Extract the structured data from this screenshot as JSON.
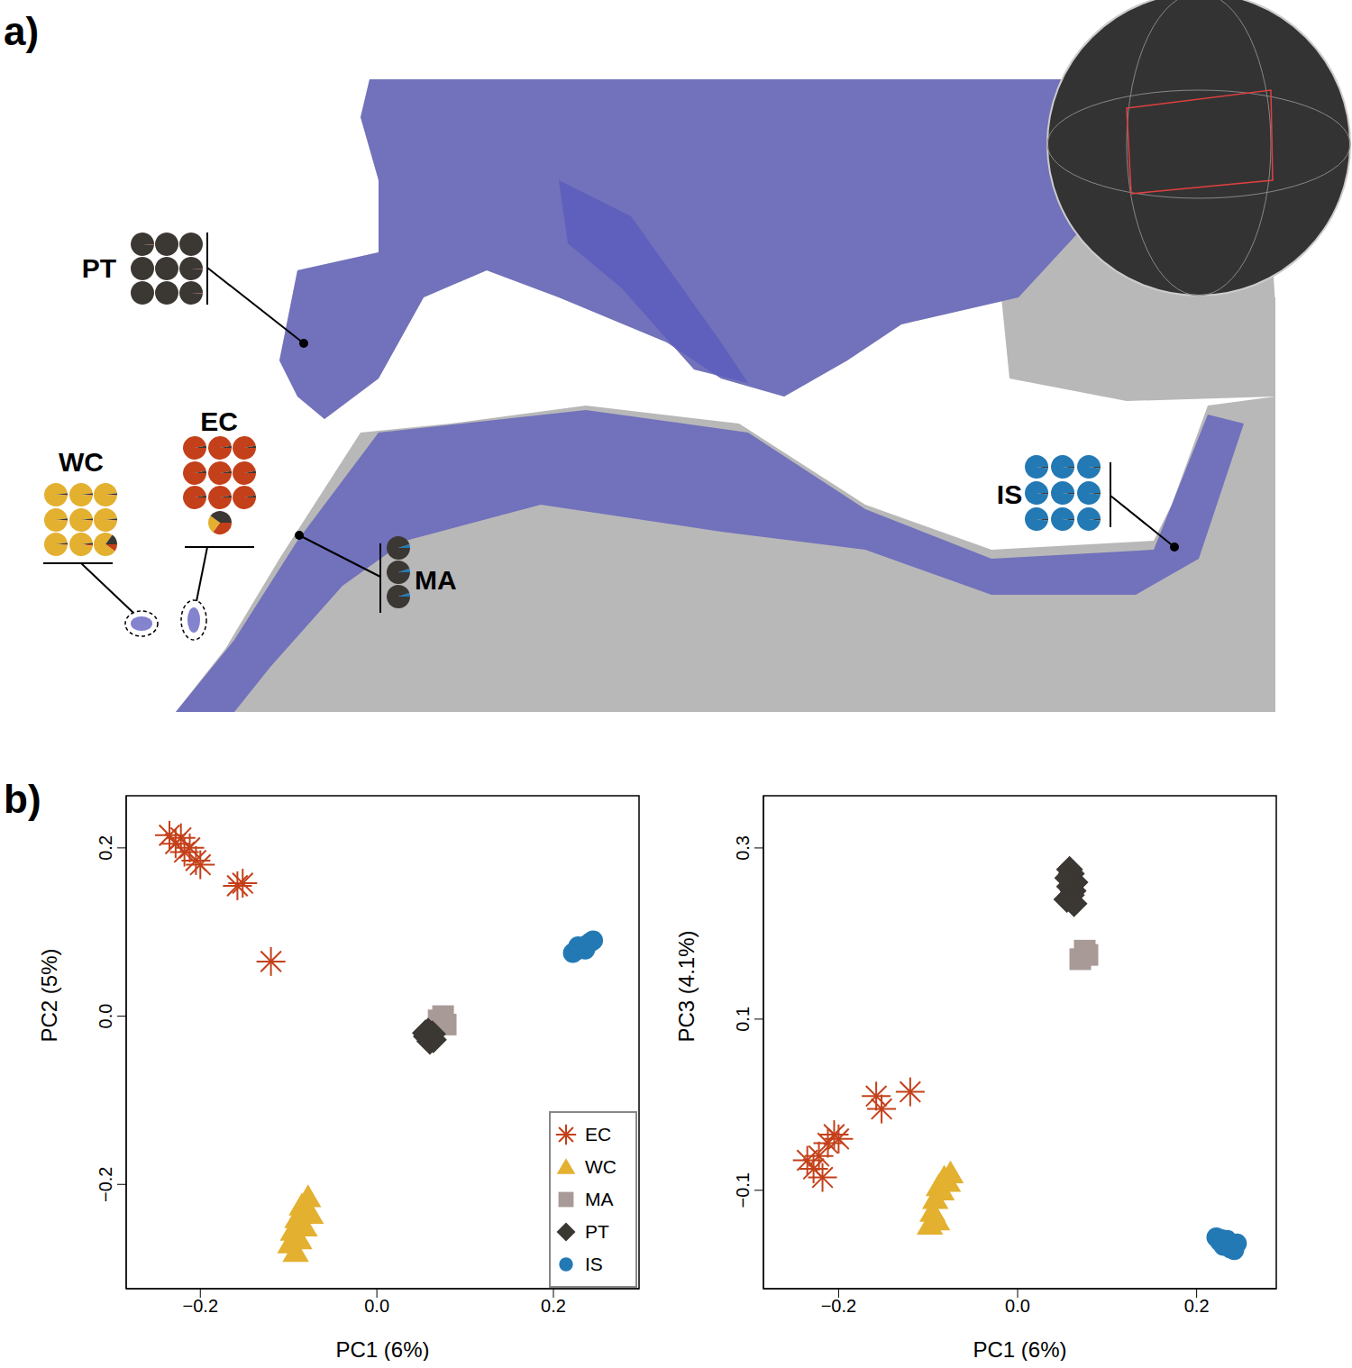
{
  "figure_labels": [
    "a)",
    "b)"
  ],
  "map": {
    "cluster_colors": [
      "#c4401a",
      "#e3b02f",
      "#3b3733",
      "#2379b4"
    ],
    "populations": [
      {
        "name": "PT",
        "individuals": [
          [
            0.01,
            0,
            0.99,
            0
          ],
          [
            0,
            0,
            1,
            0
          ],
          [
            0,
            0,
            1,
            0
          ],
          [
            0,
            0,
            1,
            0
          ],
          [
            0,
            0,
            1,
            0
          ],
          [
            0.01,
            0,
            0.99,
            0
          ],
          [
            0,
            0,
            1,
            0
          ],
          [
            0,
            0,
            1,
            0
          ],
          [
            0.01,
            0,
            0.99,
            0
          ]
        ]
      },
      {
        "name": "EC",
        "individuals": [
          [
            0.97,
            0,
            0.03,
            0
          ],
          [
            0.97,
            0,
            0.03,
            0
          ],
          [
            0.97,
            0,
            0.03,
            0
          ],
          [
            0.97,
            0,
            0.03,
            0
          ],
          [
            0.97,
            0,
            0.03,
            0
          ],
          [
            0.97,
            0,
            0.03,
            0
          ],
          [
            0.97,
            0,
            0.03,
            0
          ],
          [
            0.97,
            0,
            0.03,
            0
          ],
          [
            0.97,
            0,
            0.03,
            0
          ],
          [
            0.35,
            0.25,
            0.4,
            0
          ]
        ]
      },
      {
        "name": "WC",
        "individuals": [
          [
            0.01,
            0.97,
            0.02,
            0
          ],
          [
            0.01,
            0.97,
            0.02,
            0
          ],
          [
            0.01,
            0.97,
            0.02,
            0
          ],
          [
            0.01,
            0.97,
            0.02,
            0
          ],
          [
            0.01,
            0.97,
            0.02,
            0
          ],
          [
            0.01,
            0.97,
            0.02,
            0
          ],
          [
            0.01,
            0.97,
            0.02,
            0
          ],
          [
            0.02,
            0.96,
            0.02,
            0
          ],
          [
            0.1,
            0.75,
            0.15,
            0
          ]
        ]
      },
      {
        "name": "MA",
        "individuals": [
          [
            0,
            0,
            0.95,
            0.05
          ],
          [
            0,
            0,
            0.95,
            0.05
          ],
          [
            0,
            0,
            0.95,
            0.05
          ]
        ]
      },
      {
        "name": "IS",
        "individuals": [
          [
            0,
            0,
            0.02,
            0.98
          ],
          [
            0,
            0,
            0.02,
            0.98
          ],
          [
            0,
            0,
            0.02,
            0.98
          ],
          [
            0,
            0,
            0.02,
            0.98
          ],
          [
            0,
            0,
            0.02,
            0.98
          ],
          [
            0,
            0,
            0.02,
            0.98
          ],
          [
            0,
            0,
            0.02,
            0.98
          ],
          [
            0,
            0,
            0.02,
            0.98
          ],
          [
            0,
            0,
            0.02,
            0.98
          ]
        ]
      }
    ]
  },
  "chart_data": [
    {
      "type": "scatter",
      "x_label": "PC1 (6%)",
      "y_label": "PC2 (5%)",
      "xlim": [
        -0.284,
        0.297
      ],
      "ylim": [
        -0.324,
        0.262
      ],
      "xticks": [
        {
          "value": -0.2,
          "label": "−0.2"
        },
        {
          "value": 0,
          "label": "0.0"
        },
        0.2
      ],
      "yticks": [
        {
          "value": -0.2,
          "label": "−0.2"
        },
        {
          "value": 0,
          "label": "0.0"
        },
        0.2
      ],
      "legend": "lower right",
      "series": [
        {
          "name": "EC",
          "color": "#c4401a",
          "marker": "asterisk",
          "x": [
            -0.235,
            -0.228,
            -0.222,
            -0.218,
            -0.212,
            -0.205,
            -0.2,
            -0.158,
            -0.152,
            -0.12
          ],
          "y": [
            0.215,
            0.205,
            0.212,
            0.195,
            0.2,
            0.185,
            0.18,
            0.155,
            0.158,
            0.065
          ]
        },
        {
          "name": "WC",
          "color": "#e3b02f",
          "marker": "triangle",
          "x": [
            -0.098,
            -0.095,
            -0.092,
            -0.09,
            -0.088,
            -0.085,
            -0.082,
            -0.078,
            -0.075
          ],
          "y": [
            -0.27,
            -0.255,
            -0.28,
            -0.24,
            -0.265,
            -0.225,
            -0.25,
            -0.215,
            -0.235
          ]
        },
        {
          "name": "MA",
          "color": "#a89a96",
          "marker": "square",
          "x": [
            0.07,
            0.075,
            0.078
          ],
          "y": [
            -0.005,
            0.0,
            -0.01
          ]
        },
        {
          "name": "PT",
          "color": "#3b3733",
          "marker": "diamond",
          "x": [
            0.055,
            0.058,
            0.06,
            0.062,
            0.064,
            0.058,
            0.06,
            0.056,
            0.063
          ],
          "y": [
            -0.02,
            -0.025,
            -0.03,
            -0.022,
            -0.028,
            -0.018,
            -0.026,
            -0.024,
            -0.021
          ]
        },
        {
          "name": "IS",
          "color": "#2379b4",
          "marker": "circle",
          "x": [
            0.222,
            0.226,
            0.23,
            0.234,
            0.238,
            0.242,
            0.245,
            0.228,
            0.236
          ],
          "y": [
            0.075,
            0.078,
            0.08,
            0.082,
            0.085,
            0.088,
            0.09,
            0.083,
            0.079
          ]
        }
      ]
    },
    {
      "type": "scatter",
      "x_label": "PC1 (6%)",
      "y_label": "PC3 (4.1%)",
      "xlim": [
        -0.284,
        0.289
      ],
      "ylim": [
        -0.215,
        0.361
      ],
      "xticks": [
        {
          "value": -0.2,
          "label": "−0.2"
        },
        {
          "value": 0,
          "label": "0.0"
        },
        0.2
      ],
      "yticks": [
        {
          "value": -0.1,
          "label": "−0.1"
        },
        0.1,
        0.3
      ],
      "series": [
        {
          "name": "EC",
          "color": "#c4401a",
          "marker": "asterisk",
          "x": [
            -0.235,
            -0.228,
            -0.222,
            -0.218,
            -0.212,
            -0.205,
            -0.2,
            -0.158,
            -0.152,
            -0.12
          ],
          "y": [
            -0.065,
            -0.075,
            -0.06,
            -0.085,
            -0.045,
            -0.035,
            -0.04,
            0.01,
            -0.005,
            0.015
          ]
        },
        {
          "name": "WC",
          "color": "#e3b02f",
          "marker": "triangle",
          "x": [
            -0.098,
            -0.095,
            -0.092,
            -0.09,
            -0.088,
            -0.085,
            -0.082,
            -0.078,
            -0.075
          ],
          "y": [
            -0.14,
            -0.125,
            -0.11,
            -0.135,
            -0.095,
            -0.1,
            -0.085,
            -0.09,
            -0.08
          ]
        },
        {
          "name": "MA",
          "color": "#a89a96",
          "marker": "square",
          "x": [
            0.07,
            0.075,
            0.078
          ],
          "y": [
            0.17,
            0.18,
            0.175
          ]
        },
        {
          "name": "PT",
          "color": "#3b3733",
          "marker": "diamond",
          "x": [
            0.055,
            0.058,
            0.06,
            0.062,
            0.064,
            0.058,
            0.06,
            0.056,
            0.063
          ],
          "y": [
            0.24,
            0.255,
            0.27,
            0.25,
            0.26,
            0.275,
            0.245,
            0.265,
            0.235
          ]
        },
        {
          "name": "IS",
          "color": "#2379b4",
          "marker": "circle",
          "x": [
            0.222,
            0.226,
            0.23,
            0.234,
            0.238,
            0.242,
            0.245,
            0.228,
            0.236
          ],
          "y": [
            -0.155,
            -0.16,
            -0.165,
            -0.158,
            -0.168,
            -0.17,
            -0.162,
            -0.157,
            -0.166
          ]
        }
      ]
    }
  ]
}
